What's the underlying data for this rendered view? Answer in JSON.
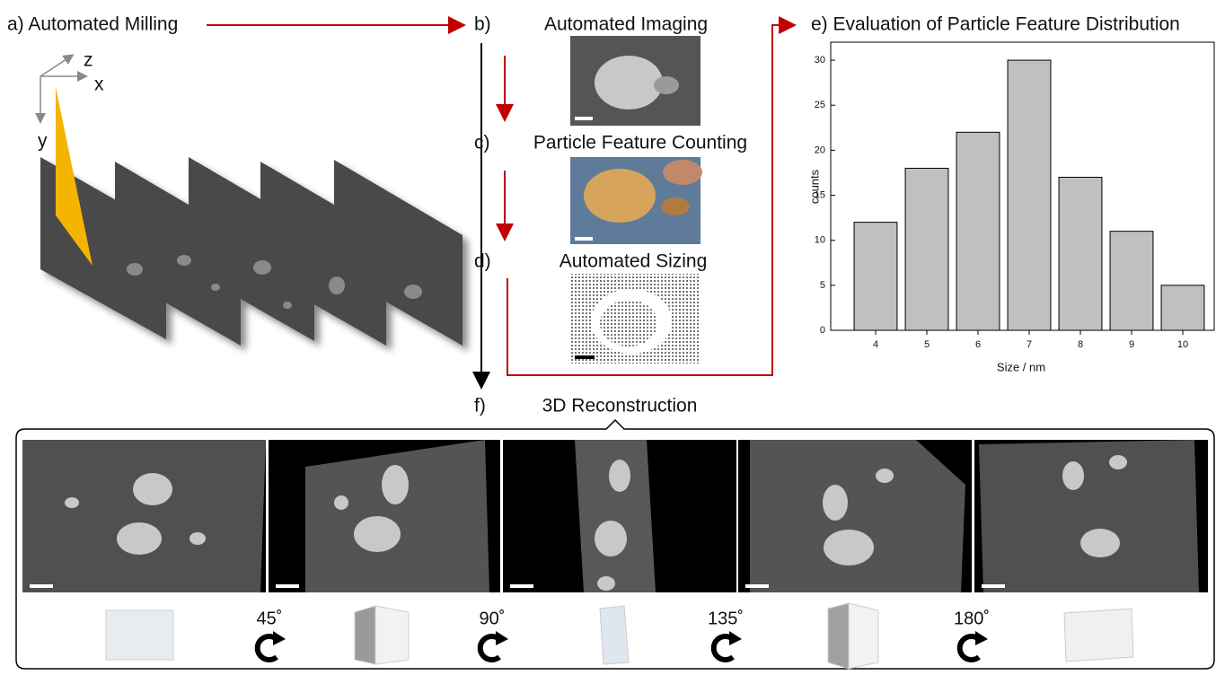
{
  "panels": {
    "a": {
      "title": "a) Automated Milling",
      "axes": [
        "z",
        "x",
        "y"
      ]
    },
    "b": {
      "label": "b)",
      "title": "Automated Imaging"
    },
    "c": {
      "label": "c)",
      "title": "Particle Feature Counting"
    },
    "d": {
      "label": "d)",
      "title": "Automated Sizing"
    },
    "f": {
      "label": "f)",
      "title": "3D Reconstruction",
      "angles": [
        "45˚",
        "90˚",
        "135˚",
        "180˚"
      ]
    }
  },
  "chart_data": {
    "type": "bar",
    "title": "e) Evaluation of Particle Feature Distribution",
    "categories": [
      "4",
      "5",
      "6",
      "7",
      "8",
      "9",
      "10"
    ],
    "values": [
      12,
      18,
      22,
      30,
      17,
      11,
      5
    ],
    "color": "#c0c0c0",
    "xlabel": "Size / nm",
    "ylabel": "counts",
    "ylim": [
      0,
      32
    ],
    "yticks": [
      0,
      5,
      10,
      15,
      20,
      25,
      30
    ]
  }
}
